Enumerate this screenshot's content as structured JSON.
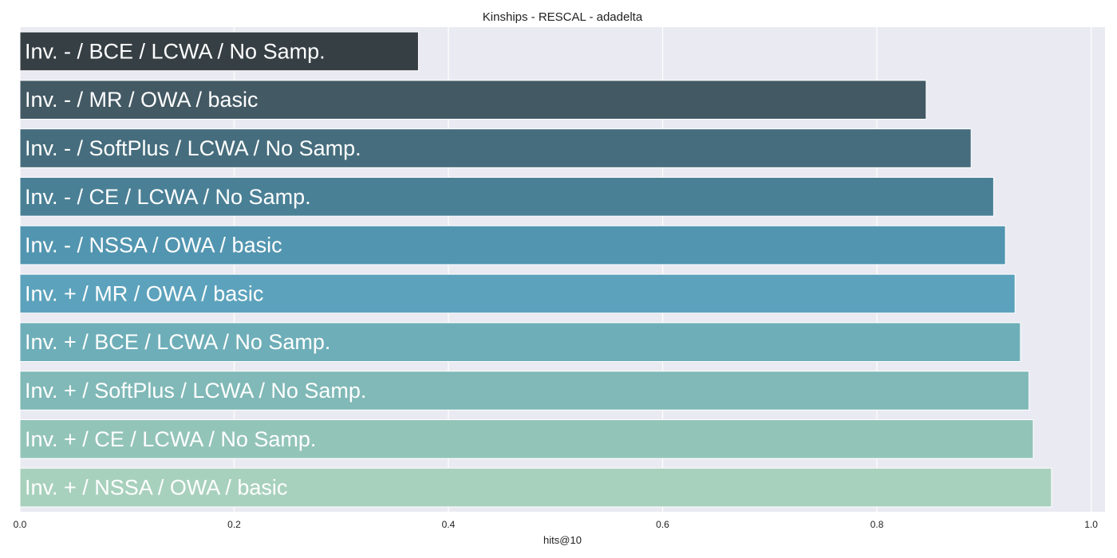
{
  "chart_data": {
    "type": "bar",
    "orientation": "horizontal",
    "title": "Kinships - RESCAL - adadelta",
    "xlabel": "hits@10",
    "xlim": [
      0,
      1.013
    ],
    "xticks": [
      "0.0",
      "0.2",
      "0.4",
      "0.6",
      "0.8",
      "1.0"
    ],
    "grid": true,
    "bars": [
      {
        "label": "Inv. - / BCE / LCWA / No Samp.",
        "value": 0.372,
        "color": "#363F44"
      },
      {
        "label": "Inv. - / MR / OWA / basic",
        "value": 0.846,
        "color": "#435964"
      },
      {
        "label": "Inv. - / SoftPlus / LCWA / No Samp.",
        "value": 0.888,
        "color": "#466D7D"
      },
      {
        "label": "Inv. - / CE / LCWA / No Samp.",
        "value": 0.909,
        "color": "#4A8096"
      },
      {
        "label": "Inv. - / NSSA / OWA / basic",
        "value": 0.92,
        "color": "#5295B0"
      },
      {
        "label": "Inv. + / MR / OWA / basic",
        "value": 0.929,
        "color": "#5CA2BC"
      },
      {
        "label": "Inv. + / BCE / LCWA / No Samp.",
        "value": 0.934,
        "color": "#6EAEB8"
      },
      {
        "label": "Inv. + / SoftPlus / LCWA / No Samp.",
        "value": 0.942,
        "color": "#80B9B7"
      },
      {
        "label": "Inv. + / CE / LCWA / No Samp.",
        "value": 0.946,
        "color": "#93C4B8"
      },
      {
        "label": "Inv. + / NSSA / OWA / basic",
        "value": 0.963,
        "color": "#A8D1BD"
      }
    ],
    "background_color": "#EAEAF2"
  }
}
